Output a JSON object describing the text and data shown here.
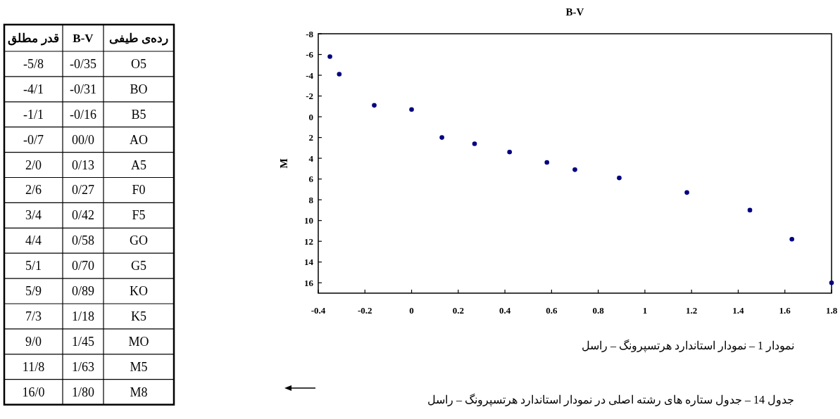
{
  "chart_data": [
    {
      "type": "other",
      "title": "جدول 14 – جدول ستاره های رشته اصلی در نمودار استاندارد هرتسپرونگ – راسل",
      "annotations": [
        "قدر مطلق",
        "B-V",
        "رده‌ی طیفی",
        "-5/8",
        "-0/35",
        "O5",
        "-4/1",
        "-0/31",
        "BO",
        "-1/1",
        "-0/16",
        "B5",
        "-0/7",
        "00/0",
        "AO",
        "2/0",
        "0/13",
        "A5",
        "2/6",
        "0/27",
        "F0",
        "3/4",
        "0/42",
        "F5",
        "4/4",
        "0/58",
        "GO",
        "5/1",
        "0/70",
        "G5",
        "5/9",
        "0/89",
        "KO",
        "7/3",
        "1/18",
        "K5",
        "9/0",
        "1/45",
        "MO",
        "11/8",
        "1/63",
        "M5",
        "16/0",
        "1/80",
        "M8"
      ]
    },
    {
      "type": "scatter",
      "title": "نمودار 1 – نمودار استاندارد هرتسپرونگ – راسل",
      "xlabel": "B-V",
      "ylabel": "M",
      "x": [
        -0.35,
        -0.31,
        -0.16,
        0,
        0.13,
        0.27,
        0.42,
        0.58,
        0.7,
        0.89,
        1.18,
        1.45,
        1.63,
        1.8
      ],
      "series": [
        {
          "color": "#000080",
          "values": [
            -5.8,
            -4.1,
            -1.1,
            -0.7,
            2.0,
            2.6,
            3.4,
            4.4,
            5.1,
            5.9,
            7.3,
            9.0,
            11.8,
            16.0
          ]
        }
      ],
      "xlim": [
        -0.4,
        1.8
      ],
      "xticks": [
        -0.4,
        -0.2,
        0,
        0.2,
        0.4,
        0.6,
        0.8,
        1,
        1.2,
        1.4,
        1.6,
        1.8
      ],
      "ylim": [
        17,
        -8
      ],
      "yticks": [
        -8,
        -6,
        -4,
        -2,
        0,
        2,
        4,
        6,
        8,
        10,
        12,
        14,
        16
      ],
      "marker": "circle",
      "grid": false
    }
  ]
}
